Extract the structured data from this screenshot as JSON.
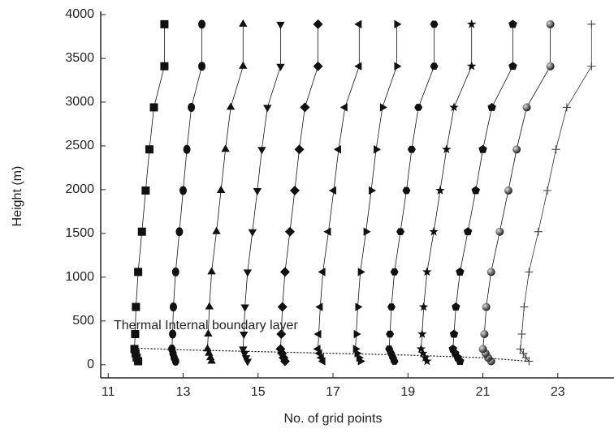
{
  "chart_data": {
    "type": "scatter",
    "xlabel": "No. of grid points",
    "ylabel": "Height (m)",
    "xlim": [
      10.8,
      24.5
    ],
    "ylim": [
      -150,
      4000
    ],
    "xticks": [
      11,
      13,
      15,
      17,
      19,
      21,
      23
    ],
    "yticks": [
      0,
      500,
      1000,
      1500,
      2000,
      2500,
      3000,
      3500,
      4000
    ],
    "y": [
      40,
      80,
      130,
      180,
      350,
      660,
      1060,
      1520,
      1990,
      2460,
      2940,
      3410,
      3890
    ],
    "series": [
      {
        "marker": "square",
        "color": "#111111",
        "x": [
          11.8,
          11.76,
          11.73,
          11.7,
          11.72,
          11.74,
          11.8,
          11.9,
          12.0,
          12.1,
          12.22,
          12.5,
          12.5
        ]
      },
      {
        "marker": "circle",
        "color": "#111111",
        "x": [
          12.8,
          12.76,
          12.73,
          12.7,
          12.72,
          12.74,
          12.8,
          12.9,
          13.0,
          13.1,
          13.22,
          13.5,
          13.5
        ]
      },
      {
        "marker": "triangle-up",
        "color": "#111111",
        "x": [
          13.76,
          13.73,
          13.69,
          13.65,
          13.67,
          13.7,
          13.76,
          13.89,
          14.01,
          14.13,
          14.27,
          14.6,
          14.6
        ]
      },
      {
        "marker": "triangle-down",
        "color": "#111111",
        "x": [
          14.72,
          14.68,
          14.64,
          14.6,
          14.62,
          14.65,
          14.72,
          14.85,
          14.98,
          15.1,
          15.25,
          15.6,
          15.6
        ]
      },
      {
        "marker": "diamond",
        "color": "#111111",
        "x": [
          15.72,
          15.68,
          15.64,
          15.6,
          15.62,
          15.65,
          15.72,
          15.85,
          15.98,
          16.1,
          16.25,
          16.6,
          16.6
        ]
      },
      {
        "marker": "triangle-left",
        "color": "#111111",
        "x": [
          16.73,
          16.69,
          16.64,
          16.6,
          16.62,
          16.66,
          16.73,
          16.88,
          17.02,
          17.15,
          17.32,
          17.7,
          17.7
        ]
      },
      {
        "marker": "triangle-right",
        "color": "#111111",
        "x": [
          17.73,
          17.69,
          17.64,
          17.6,
          17.62,
          17.66,
          17.73,
          17.88,
          18.02,
          18.15,
          18.32,
          18.7,
          18.7
        ]
      },
      {
        "marker": "hexagon",
        "color": "#111111",
        "x": [
          18.64,
          18.6,
          18.55,
          18.5,
          18.52,
          18.56,
          18.64,
          18.8,
          18.96,
          19.1,
          19.28,
          19.7,
          19.7
        ]
      },
      {
        "marker": "star",
        "color": "#111111",
        "x": [
          19.51,
          19.46,
          19.4,
          19.35,
          19.38,
          19.42,
          19.51,
          19.69,
          19.86,
          20.03,
          20.23,
          20.7,
          20.7
        ]
      },
      {
        "marker": "pentagon",
        "color": "#111111",
        "x": [
          20.39,
          20.33,
          20.26,
          20.2,
          20.23,
          20.28,
          20.39,
          20.6,
          20.81,
          21.0,
          21.24,
          21.8,
          21.8
        ]
      },
      {
        "marker": "sphere",
        "color": "#111111",
        "x": [
          21.22,
          21.14,
          21.07,
          21.0,
          21.04,
          21.09,
          21.22,
          21.45,
          21.68,
          21.9,
          22.17,
          22.8,
          22.8
        ]
      },
      {
        "marker": "plus",
        "color": "#333333",
        "x": [
          22.23,
          22.15,
          22.08,
          22.0,
          22.04,
          22.1,
          22.23,
          22.48,
          22.72,
          22.95,
          23.24,
          23.9,
          23.9
        ]
      }
    ],
    "boundary_layer": {
      "label": "Thermal Internal boundary layer",
      "color": "#111111",
      "x": [
        11.7,
        13,
        15,
        17,
        19,
        21,
        22.2
      ],
      "y": [
        190,
        170,
        150,
        130,
        110,
        80,
        40
      ]
    }
  }
}
